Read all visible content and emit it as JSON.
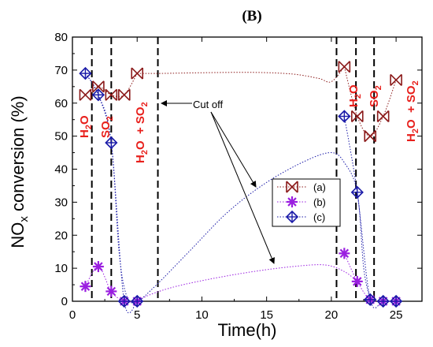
{
  "chart_data": {
    "type": "scatter",
    "title": "(B)",
    "xlabel": "Time(h)",
    "ylabel_main": "NO",
    "ylabel_sub": "x",
    "ylabel_rest": " conversion (%)",
    "xlim": [
      0,
      27
    ],
    "ylim": [
      0,
      80
    ],
    "xticks": [
      0,
      5,
      10,
      15,
      20,
      25
    ],
    "yticks": [
      0,
      10,
      20,
      30,
      40,
      50,
      60,
      70,
      80
    ],
    "grid": false,
    "legend_position": "center-right",
    "series": [
      {
        "name": "(a)",
        "color": "#8b1a1a",
        "marker": "hourglass-x",
        "points": [
          [
            1,
            62.5
          ],
          [
            2,
            65
          ],
          [
            3,
            62.5
          ],
          [
            4,
            62.5
          ],
          [
            5,
            69
          ],
          [
            21,
            71
          ],
          [
            22,
            56
          ],
          [
            23,
            50
          ],
          [
            24,
            56
          ],
          [
            25,
            67
          ]
        ],
        "curve": [
          [
            5,
            69
          ],
          [
            7,
            69
          ],
          [
            10,
            69.2
          ],
          [
            14,
            69.3
          ],
          [
            17,
            68.8
          ],
          [
            19,
            67.5
          ],
          [
            20,
            66.5
          ],
          [
            21,
            71
          ]
        ]
      },
      {
        "name": "(b)",
        "color": "#9a1fe0",
        "marker": "asterisk",
        "points": [
          [
            1,
            4.5
          ],
          [
            2,
            10.5
          ],
          [
            3,
            3
          ],
          [
            4,
            0
          ],
          [
            5,
            0
          ],
          [
            21,
            14.5
          ],
          [
            22,
            6
          ],
          [
            23,
            0.5
          ],
          [
            24,
            0
          ],
          [
            25,
            0
          ]
        ],
        "curve": [
          [
            5,
            0
          ],
          [
            6,
            2
          ],
          [
            8,
            4.5
          ],
          [
            11,
            7
          ],
          [
            14,
            9
          ],
          [
            17,
            10.5
          ],
          [
            19.5,
            11
          ],
          [
            21,
            9
          ],
          [
            22,
            6
          ]
        ]
      },
      {
        "name": "(c)",
        "color": "#1a1aa8",
        "marker": "circle-plus",
        "points": [
          [
            1,
            69
          ],
          [
            2,
            62.5
          ],
          [
            3,
            48
          ],
          [
            4,
            0
          ],
          [
            5,
            0
          ],
          [
            21,
            56
          ],
          [
            22,
            33
          ],
          [
            23,
            0.5
          ],
          [
            24,
            0
          ],
          [
            25,
            0
          ]
        ],
        "curve": [
          [
            1,
            69
          ],
          [
            2,
            62.5
          ],
          [
            3,
            48
          ],
          [
            3.6,
            15
          ],
          [
            4.2,
            1.5
          ],
          [
            5,
            0
          ],
          [
            6.5,
            5
          ],
          [
            9,
            15
          ],
          [
            12,
            27
          ],
          [
            15,
            36
          ],
          [
            18,
            42.5
          ],
          [
            20,
            45
          ],
          [
            21,
            42
          ],
          [
            22,
            33
          ],
          [
            22.5,
            10
          ],
          [
            23,
            0.5
          ]
        ]
      }
    ],
    "vlines": [
      1.5,
      3,
      6.6,
      20.4,
      21.9,
      23.3
    ],
    "annotations": {
      "h2o_left": "H",
      "h2o_left_sub": "2",
      "h2o_left_rest": "O",
      "so2_left": "SO",
      "so2_left_sub": "2",
      "h2o_so2_left": "H",
      "h2o_so2_left_sub1": "2",
      "h2o_so2_left_mid": "O  + SO",
      "h2o_so2_left_sub2": "2",
      "h2o_right": "H",
      "h2o_right_sub": "2",
      "h2o_right_rest": "O",
      "so2_right": "SO",
      "so2_right_sub": "2",
      "h2o_so2_right": "H",
      "h2o_so2_right_sub1": "2",
      "h2o_so2_right_mid": "O  + SO",
      "h2o_so2_right_sub2": "2",
      "cut_off": "Cut off"
    }
  }
}
